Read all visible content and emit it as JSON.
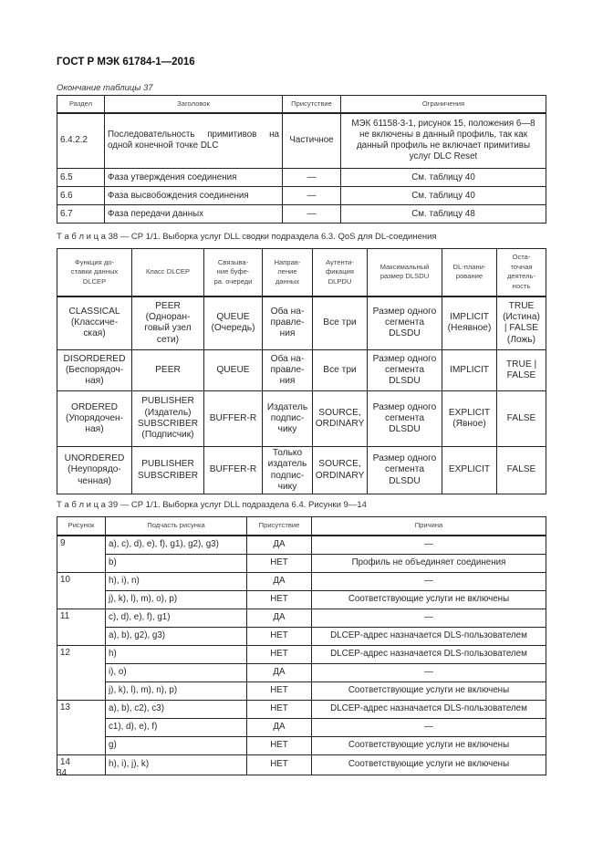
{
  "document": {
    "header": "ГОСТ Р МЭК 61784-1—2016",
    "page_number": "34"
  },
  "table37": {
    "caption": "Окончание таблицы 37",
    "headers": [
      "Раздел",
      "Заголовок",
      "Присутствие",
      "Ограничения"
    ],
    "rows": [
      {
        "section": "6.4.2.2",
        "title": "Последовательность примитивов на одной конечной точке DLC",
        "presence": "Частичное",
        "limits": "МЭК 61158-3-1, рисунок 15, положения 6—8\nне включены в данный профиль, так как\nданный профиль не включает примитивы\nуслуг DLC Reset"
      },
      {
        "section": "6.5",
        "title": "Фаза утверждения соединения",
        "presence": "—",
        "limits": "См. таблицу 40"
      },
      {
        "section": "6.6",
        "title": "Фаза высвобождения соединения",
        "presence": "—",
        "limits": "См. таблицу 40"
      },
      {
        "section": "6.7",
        "title": "Фаза передачи данных",
        "presence": "—",
        "limits": "См. таблицу 48"
      }
    ]
  },
  "table38": {
    "caption": "Т а б л и ц а  38 — СР 1/1. Выборка услуг DLL сводки подраздела 6.3. QoS для DL-соединения",
    "headers": [
      "Функция до-\nставки данных\nDLCEP",
      "Класс DLCEP",
      "Связыва-\nние буфе-\nра. очереди",
      "Направ-\nление\nданных",
      "Аутенти-\nфикация\nDLPDU",
      "Максимальный\nразмер DLSDU",
      "DL-плани-\nрование",
      "Оста-\nточная\nдеятель-\nность"
    ],
    "rows": [
      [
        "CLASSICAL\n(Классиче-\nская)",
        "PEER\n(Одноран-\nговый узел\nсети)",
        "QUEUE\n(Очередь)",
        "Оба на-\nправле-\nния",
        "Все три",
        "Размер одного\nсегмента\nDLSDU",
        "IMPLICIT\n(Неявное)",
        "TRUE\n(Истина)\n| FALSE\n(Ложь)"
      ],
      [
        "DISORDERED\n(Беспорядоч-\nная)",
        "PEER",
        "QUEUE",
        "Оба на-\nправле-\nния",
        "Все три",
        "Размер одного\nсегмента\nDLSDU",
        "IMPLICIT",
        "TRUE |\nFALSE"
      ],
      [
        "ORDERED\n(Упорядочен-\nная)",
        "PUBLISHER\n(Издатель)\nSUBSCRIBER\n(Подписчик)",
        "BUFFER-R",
        "Издатель\nподпис-\nчику",
        "SOURCE,\nORDINARY",
        "Размер одного\nсегмента\nDLSDU",
        "EXPLICIT\n(Явное)",
        "FALSE"
      ],
      [
        "UNORDERED\n(Неупорядо-\nченная)",
        "PUBLISHER\nSUBSCRIBER",
        "BUFFER-R",
        "Только\nиздатель\nподпис-\nчику",
        "SOURCE,\nORDINARY",
        "Размер одного\nсегмента\nDLSDU",
        "EXPLICIT",
        "FALSE"
      ]
    ]
  },
  "table39": {
    "caption": "Т а б л и ц а  39 — СР 1/1. Выборка услуг DLL подраздела 6.4. Рисунки 9—14",
    "headers": [
      "Рисунок",
      "Подчасть рисунка",
      "Присутствие",
      "Причина"
    ],
    "groups": [
      {
        "figure": "9",
        "rows": [
          {
            "sub": "a), c), d), e), f), g1), g2), g3)",
            "presence": "ДА",
            "reason": "—"
          },
          {
            "sub": "b)",
            "presence": "НЕТ",
            "reason": "Профиль не объединяет соединения"
          }
        ]
      },
      {
        "figure": "10",
        "rows": [
          {
            "sub": "h), i), n)",
            "presence": "ДА",
            "reason": "—"
          },
          {
            "sub": "j), k), l), m), o), p)",
            "presence": "НЕТ",
            "reason": "Соответствующие услуги не включены"
          }
        ]
      },
      {
        "figure": "11",
        "rows": [
          {
            "sub": "c), d), e), f), g1)",
            "presence": "ДА",
            "reason": "—"
          },
          {
            "sub": "a), b), g2), g3)",
            "presence": "НЕТ",
            "reason": "DLCEP-адрес назначается DLS-пользователем"
          }
        ]
      },
      {
        "figure": "12",
        "rows": [
          {
            "sub": "h)",
            "presence": "НЕТ",
            "reason": "DLCEP-адрес назначается DLS-пользователем"
          },
          {
            "sub": "i), o)",
            "presence": "ДА",
            "reason": "—"
          },
          {
            "sub": "j), k), l), m), n), p)",
            "presence": "НЕТ",
            "reason": "Соответствующие услуги не включены"
          }
        ]
      },
      {
        "figure": "13",
        "rows": [
          {
            "sub": "a), b), c2), c3)",
            "presence": "НЕТ",
            "reason": "DLCEP-адрес назначается DLS-пользователем"
          },
          {
            "sub": "c1), d), e), f)",
            "presence": "ДА",
            "reason": "—"
          },
          {
            "sub": "g)",
            "presence": "НЕТ",
            "reason": "Соответствующие услуги не включены"
          }
        ]
      },
      {
        "figure": "14",
        "rows": [
          {
            "sub": "h), i), j), k)",
            "presence": "НЕТ",
            "reason": "Соответствующие услуги не включены"
          }
        ]
      }
    ]
  }
}
